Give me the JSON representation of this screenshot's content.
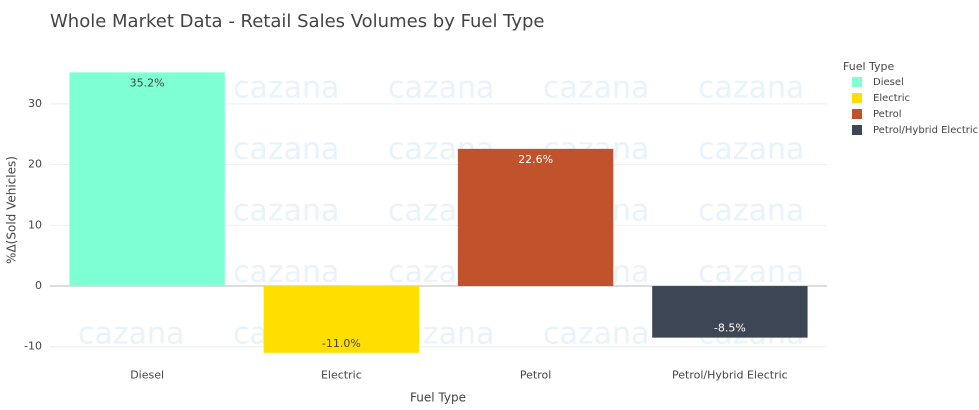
{
  "chart_data": {
    "type": "bar",
    "title": "Whole Market Data - Retail Sales Volumes by Fuel Type",
    "x_label": "Fuel Type",
    "y_label": "%Δ(Sold Vehicles)",
    "legend_title": "Fuel Type",
    "watermark": "cazana",
    "categories": [
      "Diesel",
      "Electric",
      "Petrol",
      "Petrol/Hybrid Electric"
    ],
    "series": [
      {
        "name": "Diesel",
        "color": "#7fffd4",
        "values": [
          35.2,
          null,
          null,
          null
        ],
        "value_labels": [
          "35.2%",
          null,
          null,
          null
        ]
      },
      {
        "name": "Electric",
        "color": "#ffde00",
        "values": [
          null,
          -11.0,
          null,
          null
        ],
        "value_labels": [
          null,
          "-11.0%",
          null,
          null
        ]
      },
      {
        "name": "Petrol",
        "color": "#c0532b",
        "values": [
          null,
          null,
          22.6,
          null
        ],
        "value_labels": [
          null,
          null,
          "22.6%",
          null
        ]
      },
      {
        "name": "Petrol/Hybrid Electric",
        "color": "#3d4654",
        "values": [
          null,
          null,
          null,
          -8.5
        ],
        "value_labels": [
          null,
          null,
          null,
          "-8.5%"
        ]
      }
    ],
    "ylim": [
      -12.3,
      37.5
    ],
    "yticks": [
      -10,
      0,
      10,
      20,
      30
    ],
    "grid": true,
    "legend": "right"
  }
}
